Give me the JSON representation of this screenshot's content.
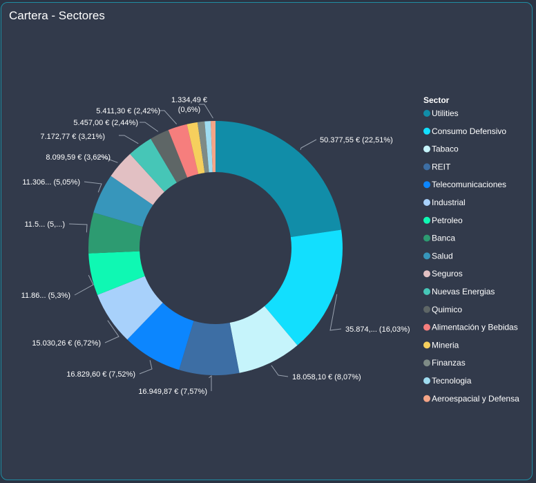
{
  "card": {
    "title": "Cartera - Sectores"
  },
  "chart_data": {
    "type": "pie",
    "title": "Cartera - Sectores",
    "legend_title": "Sector",
    "legend_position": "right",
    "labels_text": [
      "50.377,55 € (22,51%)",
      "35.874,... (16,03%)",
      "18.058,10 € (8,07%)",
      "16.949,87 € (7,57%)",
      "16.829,60 € (7,52%)",
      "15.030,26 € (6,72%)",
      "11.86... (5,3%)",
      "11.5... (5,...)",
      "11.306... (5,05%)",
      "8.099,59 € (3,62%)",
      "7.172,77 € (3,21%)",
      "5.457,00 € (2,44%)",
      "5.411,30 € (2,42%)",
      "",
      "",
      "",
      "1.334,49 €|(0,6%)"
    ],
    "slices": [
      {
        "name": "Utilities",
        "value": 50377.55,
        "percent": 22.51,
        "color": "#118da8"
      },
      {
        "name": "Consumo Defensivo",
        "value": 35874,
        "percent": 16.03,
        "color": "#12dffe"
      },
      {
        "name": "Tabaco",
        "value": 18058.1,
        "percent": 8.07,
        "color": "#c6f4fb"
      },
      {
        "name": "REIT",
        "value": 16949.87,
        "percent": 7.57,
        "color": "#3d6ea4"
      },
      {
        "name": "Telecomunicaciones",
        "value": 16829.6,
        "percent": 7.52,
        "color": "#0c86fe"
      },
      {
        "name": "Industrial",
        "value": 15030.26,
        "percent": 6.72,
        "color": "#a8d1fb"
      },
      {
        "name": "Petroleo",
        "value": 11860,
        "percent": 5.3,
        "color": "#0ff8b3"
      },
      {
        "name": "Banca",
        "value": 11500,
        "percent": 5.14,
        "color": "#2d9b71"
      },
      {
        "name": "Salud",
        "value": 11306,
        "percent": 5.05,
        "color": "#3796bb"
      },
      {
        "name": "Seguros",
        "value": 8099.59,
        "percent": 3.62,
        "color": "#e2c0c3"
      },
      {
        "name": "Nuevas Energias",
        "value": 7172.77,
        "percent": 3.21,
        "color": "#46c6b7"
      },
      {
        "name": "Quimico",
        "value": 5457.0,
        "percent": 2.44,
        "color": "#5e6666"
      },
      {
        "name": "Alimentación y Bebidas",
        "value": 5411.3,
        "percent": 2.42,
        "color": "#f67e7d"
      },
      {
        "name": "Mineria",
        "value": 3000,
        "percent": 1.34,
        "color": "#f6cf5d"
      },
      {
        "name": "Finanzas",
        "value": 2000,
        "percent": 0.89,
        "color": "#7e8b86"
      },
      {
        "name": "Tecnologia",
        "value": 1700,
        "percent": 0.76,
        "color": "#9fdcf0"
      },
      {
        "name": "Aeroespacial y Defensa",
        "value": 1334.49,
        "percent": 0.6,
        "color": "#f5a587"
      }
    ]
  }
}
